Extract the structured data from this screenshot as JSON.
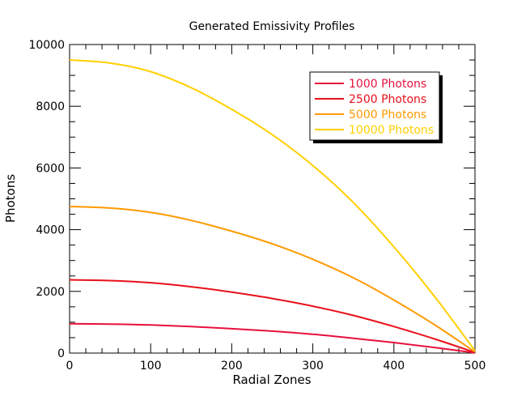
{
  "chart_data": {
    "type": "line",
    "title": "Generated Emissivity Profiles",
    "xlabel": "Radial Zones",
    "ylabel": "Photons",
    "xlim": [
      0,
      500
    ],
    "ylim": [
      0,
      10000
    ],
    "x_ticks": [
      0,
      100,
      200,
      300,
      400,
      500
    ],
    "y_ticks": [
      0,
      2000,
      4000,
      6000,
      8000,
      10000
    ],
    "x_tick_labels": [
      "0",
      "100",
      "200",
      "300",
      "400",
      "500"
    ],
    "y_tick_labels": [
      "0",
      "2000",
      "4000",
      "6000",
      "8000",
      "10000"
    ],
    "grid": false,
    "legend_position": "top-right",
    "x": [
      0,
      50,
      100,
      150,
      200,
      250,
      300,
      350,
      400,
      450,
      500
    ],
    "series": [
      {
        "name": "1000 Photons",
        "color": "#e8103c",
        "values": [
          950,
          940,
          910,
          860,
          790,
          710,
          610,
          480,
          340,
          180,
          10
        ]
      },
      {
        "name": "2500 Photons",
        "color": "#e8101a",
        "values": [
          2375,
          2350,
          2280,
          2150,
          1975,
          1770,
          1520,
          1220,
          860,
          460,
          20
        ]
      },
      {
        "name": "5000 Photons",
        "color": "#ff9a00",
        "values": [
          4750,
          4700,
          4560,
          4300,
          3950,
          3540,
          3040,
          2440,
          1720,
          920,
          40
        ]
      },
      {
        "name": "10000 Photons",
        "color": "#ffd000",
        "values": [
          9500,
          9400,
          9120,
          8600,
          7900,
          7080,
          6080,
          4880,
          3440,
          1840,
          80
        ]
      }
    ]
  }
}
